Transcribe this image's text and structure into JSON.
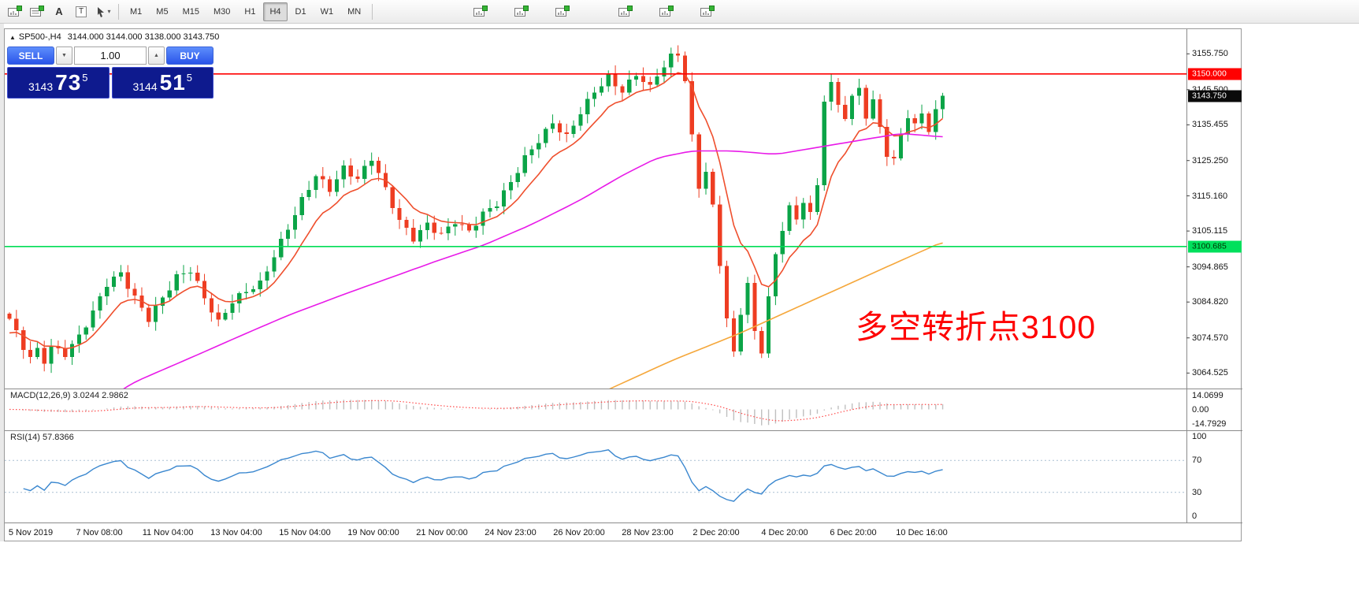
{
  "toolbar": {
    "timeframes": [
      "M1",
      "M5",
      "M15",
      "M30",
      "H1",
      "H4",
      "D1",
      "W1",
      "MN"
    ],
    "active_timeframe": "H4",
    "left_icons": [
      "new-order-icon",
      "market-watch-icon",
      "text-label-tool-icon",
      "text-box-tool-icon",
      "cursor-tool-icon"
    ],
    "window_icons": [
      "new-chart-icon",
      "profiles-icon",
      "auto-trading-icon"
    ],
    "extra_icons": [
      "zoom-in-icon",
      "zoom-out-icon",
      "chart-shift-icon"
    ]
  },
  "chart_header": {
    "collapse": "▲",
    "symbol_period": "SP500-,H4",
    "ohlc": "3144.000 3144.000 3138.000 3143.750"
  },
  "trade_panel": {
    "sell_label": "SELL",
    "buy_label": "BUY",
    "lot": "1.00",
    "sell_price": {
      "base": "3143",
      "big": "73",
      "sup": "5"
    },
    "buy_price": {
      "base": "3144",
      "big": "51",
      "sup": "5"
    }
  },
  "annotation": {
    "text": "多空转折点3100",
    "color": "#fe0000"
  },
  "price_axis": {
    "ticks": [
      {
        "label": "3155.750",
        "value": 3155.75
      },
      {
        "label": "3145.500",
        "value": 3145.5
      },
      {
        "label": "3135.455",
        "value": 3135.455
      },
      {
        "label": "3125.250",
        "value": 3125.25
      },
      {
        "label": "3115.160",
        "value": 3115.16
      },
      {
        "label": "3105.115",
        "value": 3105.115
      },
      {
        "label": "3094.865",
        "value": 3094.865
      },
      {
        "label": "3084.820",
        "value": 3084.82
      },
      {
        "label": "3074.570",
        "value": 3074.57
      },
      {
        "label": "3064.525",
        "value": 3064.525
      }
    ],
    "tags": [
      {
        "label": "3150.000",
        "value": 3150.0,
        "bg": "#ff0000",
        "fg": "#ffffff"
      },
      {
        "label": "3143.750",
        "value": 3143.75,
        "bg": "#0a0a0a",
        "fg": "#ffffff"
      },
      {
        "label": "3100.685",
        "value": 3100.685,
        "bg": "#00e05c",
        "fg": "#003300"
      }
    ]
  },
  "time_axis": {
    "labels": [
      "5 Nov 2019",
      "7 Nov 08:00",
      "11 Nov 04:00",
      "13 Nov 04:00",
      "15 Nov 04:00",
      "19 Nov 00:00",
      "21 Nov 00:00",
      "24 Nov 23:00",
      "26 Nov 20:00",
      "28 Nov 23:00",
      "2 Dec 20:00",
      "4 Dec 20:00",
      "6 Dec 20:00",
      "10 Dec 16:00"
    ]
  },
  "indicators": {
    "macd": {
      "label": "MACD(12,26,9) 3.0244 2.9862",
      "scale_max": 18.5,
      "ticks": [
        {
          "label": "14.0699",
          "value": 14.0699
        },
        {
          "label": "0.00",
          "value": 0
        },
        {
          "label": "-14.7929",
          "value": -14.7929
        }
      ]
    },
    "rsi": {
      "label": "RSI(14) 57.8366",
      "levels": [
        70,
        30
      ],
      "ticks": [
        {
          "label": "100",
          "value": 100
        },
        {
          "label": "70",
          "value": 70
        },
        {
          "label": "30",
          "value": 30
        },
        {
          "label": "0",
          "value": 0
        }
      ]
    }
  },
  "chart_data": {
    "type": "candlestick",
    "symbol": "SP500-",
    "period": "H4",
    "price_range": [
      3060.1,
      3162.8
    ],
    "candle_count": 135,
    "close_waypoints": [
      [
        0,
        3080
      ],
      [
        1,
        3076
      ],
      [
        2,
        3072
      ],
      [
        3,
        3069
      ],
      [
        4,
        3071
      ],
      [
        5,
        3068
      ],
      [
        6,
        3072
      ],
      [
        8,
        3070
      ],
      [
        10,
        3075
      ],
      [
        12,
        3082
      ],
      [
        14,
        3090
      ],
      [
        16,
        3093
      ],
      [
        18,
        3086
      ],
      [
        20,
        3080
      ],
      [
        22,
        3086
      ],
      [
        24,
        3092
      ],
      [
        26,
        3094
      ],
      [
        28,
        3086
      ],
      [
        30,
        3079
      ],
      [
        32,
        3085
      ],
      [
        34,
        3088
      ],
      [
        36,
        3090
      ],
      [
        38,
        3098
      ],
      [
        40,
        3106
      ],
      [
        42,
        3114
      ],
      [
        44,
        3121
      ],
      [
        46,
        3117
      ],
      [
        48,
        3123
      ],
      [
        50,
        3120
      ],
      [
        52,
        3126
      ],
      [
        54,
        3117
      ],
      [
        56,
        3108
      ],
      [
        58,
        3103
      ],
      [
        60,
        3107
      ],
      [
        62,
        3104
      ],
      [
        64,
        3108
      ],
      [
        66,
        3105
      ],
      [
        68,
        3110
      ],
      [
        70,
        3113
      ],
      [
        72,
        3119
      ],
      [
        74,
        3126
      ],
      [
        76,
        3131
      ],
      [
        78,
        3136
      ],
      [
        80,
        3132
      ],
      [
        82,
        3139
      ],
      [
        84,
        3145
      ],
      [
        86,
        3149
      ],
      [
        88,
        3145
      ],
      [
        90,
        3150
      ],
      [
        92,
        3146
      ],
      [
        93,
        3150
      ],
      [
        94,
        3152
      ],
      [
        95,
        3155
      ],
      [
        96,
        3156
      ],
      [
        97,
        3148
      ],
      [
        98,
        3132
      ],
      [
        99,
        3118
      ],
      [
        100,
        3122
      ],
      [
        101,
        3112
      ],
      [
        102,
        3096
      ],
      [
        103,
        3080
      ],
      [
        104,
        3070
      ],
      [
        105,
        3082
      ],
      [
        106,
        3090
      ],
      [
        107,
        3076
      ],
      [
        108,
        3071
      ],
      [
        109,
        3086
      ],
      [
        110,
        3098
      ],
      [
        111,
        3106
      ],
      [
        112,
        3112
      ],
      [
        113,
        3108
      ],
      [
        114,
        3114
      ],
      [
        115,
        3110
      ],
      [
        116,
        3118
      ],
      [
        117,
        3143
      ],
      [
        118,
        3147
      ],
      [
        119,
        3141
      ],
      [
        120,
        3138
      ],
      [
        121,
        3143
      ],
      [
        122,
        3146
      ],
      [
        123,
        3138
      ],
      [
        124,
        3142
      ],
      [
        125,
        3135
      ],
      [
        126,
        3127
      ],
      [
        127,
        3125
      ],
      [
        128,
        3133
      ],
      [
        129,
        3138
      ],
      [
        130,
        3135
      ],
      [
        131,
        3139
      ],
      [
        132,
        3134
      ],
      [
        133,
        3139
      ],
      [
        134,
        3143.75
      ]
    ],
    "h_lines": [
      {
        "value": 3150.0,
        "color": "#ff0000"
      },
      {
        "value": 3100.685,
        "color": "#00dd55"
      }
    ],
    "ma_lines": [
      {
        "name": "ma-fast",
        "style": "ema",
        "alpha": 0.2,
        "color": "#ef4f2d"
      },
      {
        "name": "ma-mid",
        "style": "path",
        "color": "#e81ae8",
        "points": [
          [
            10,
            3052
          ],
          [
            18,
            3062
          ],
          [
            25,
            3068
          ],
          [
            33,
            3075
          ],
          [
            40,
            3081
          ],
          [
            48,
            3087
          ],
          [
            55,
            3092
          ],
          [
            62,
            3097
          ],
          [
            68,
            3101
          ],
          [
            75,
            3107
          ],
          [
            82,
            3114
          ],
          [
            88,
            3121
          ],
          [
            93,
            3126
          ],
          [
            98,
            3128
          ],
          [
            104,
            3128
          ],
          [
            110,
            3127
          ],
          [
            116,
            3129
          ],
          [
            122,
            3131
          ],
          [
            128,
            3133
          ],
          [
            134,
            3132
          ]
        ]
      },
      {
        "name": "ma-slow",
        "style": "path",
        "color": "#f5a73b",
        "points": [
          [
            80,
            3052
          ],
          [
            84,
            3058
          ],
          [
            95,
            3068
          ],
          [
            105,
            3076
          ],
          [
            115,
            3085
          ],
          [
            125,
            3094
          ],
          [
            134,
            3102
          ]
        ]
      }
    ],
    "colors": {
      "up": "#0ba447",
      "down": "#ee3d22",
      "macd_bar": "#bfbfbf",
      "macd_signal": "#ff4a4a",
      "rsi_line": "#3a87cf",
      "rsi_level": "#a9bfd2"
    }
  }
}
